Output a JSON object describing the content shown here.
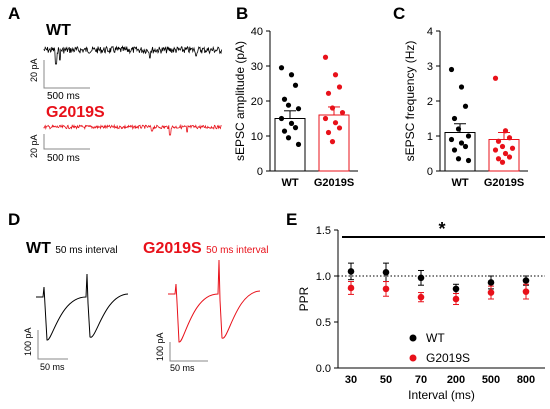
{
  "colors": {
    "wt": "#000000",
    "g2019s": "#e8111a",
    "grid": "#000000"
  },
  "panel_a": {
    "letter": "A",
    "wt_label": "WT",
    "g2019s_label": "G2019S",
    "wt_scale_y": "20 pA",
    "wt_scale_x": "500 ms",
    "g2019s_scale_y": "20 pA",
    "g2019s_scale_x": "500 ms"
  },
  "panel_d": {
    "letter": "D",
    "wt_label": "WT",
    "wt_interval": "50 ms interval",
    "g2019s_label": "G2019S",
    "g2019s_interval": "50 ms interval",
    "wt_scale_y": "100 pA",
    "wt_scale_x": "50 ms",
    "g2019s_scale_y": "100 pA",
    "g2019s_scale_x": "50 ms"
  },
  "chart_data": [
    {
      "panel": "B",
      "type": "bar",
      "ylabel": "sEPSC amplitude (pA)",
      "ylim": [
        0,
        40
      ],
      "yticks": [
        0,
        10,
        20,
        30,
        40
      ],
      "categories": [
        "WT",
        "G2019S"
      ],
      "series": [
        {
          "group": "WT",
          "mean": 15.0,
          "sem": 2.2,
          "points": [
            29.5,
            27.5,
            24.5,
            20.5,
            18.8,
            17.8,
            15.0,
            13.6,
            12.4,
            11.4,
            9.5,
            7.6
          ]
        },
        {
          "group": "G2019S",
          "mean": 16.0,
          "sem": 2.3,
          "points": [
            32.5,
            27.5,
            24.0,
            22.2,
            18.0,
            16.7,
            15.0,
            13.8,
            12.3,
            11.0,
            8.4
          ]
        }
      ]
    },
    {
      "panel": "C",
      "type": "bar",
      "ylabel": "sEPSC frequency (Hz)",
      "ylim": [
        0,
        4
      ],
      "yticks": [
        0,
        1,
        2,
        3,
        4
      ],
      "categories": [
        "WT",
        "G2019S"
      ],
      "series": [
        {
          "group": "WT",
          "mean": 1.1,
          "sem": 0.25,
          "points": [
            2.9,
            2.4,
            1.85,
            1.5,
            1.2,
            1.0,
            0.9,
            0.8,
            0.7,
            0.6,
            0.35,
            0.3
          ]
        },
        {
          "group": "G2019S",
          "mean": 0.9,
          "sem": 0.2,
          "points": [
            2.65,
            1.15,
            0.95,
            0.85,
            0.7,
            0.65,
            0.6,
            0.5,
            0.4,
            0.35,
            0.25
          ]
        }
      ]
    },
    {
      "panel": "E",
      "type": "scatter",
      "ylabel": "PPR",
      "xlabel": "Interval (ms)",
      "ylim": [
        0,
        1.5
      ],
      "yticks": [
        "0.0",
        "0.5",
        "1.0",
        "1.5"
      ],
      "categories": [
        "30",
        "50",
        "70",
        "200",
        "500",
        "800"
      ],
      "reference_line": 1.0,
      "significance": "*",
      "legend": [
        {
          "name": "WT"
        },
        {
          "name": "G2019S"
        }
      ],
      "series": [
        {
          "name": "WT",
          "values": [
            1.05,
            1.04,
            0.98,
            0.86,
            0.93,
            0.95
          ],
          "err": [
            0.09,
            0.1,
            0.08,
            0.05,
            0.07,
            0.05
          ]
        },
        {
          "name": "G2019S",
          "values": [
            0.87,
            0.86,
            0.77,
            0.75,
            0.82,
            0.83
          ],
          "err": [
            0.07,
            0.08,
            0.05,
            0.06,
            0.07,
            0.08
          ]
        }
      ]
    }
  ]
}
